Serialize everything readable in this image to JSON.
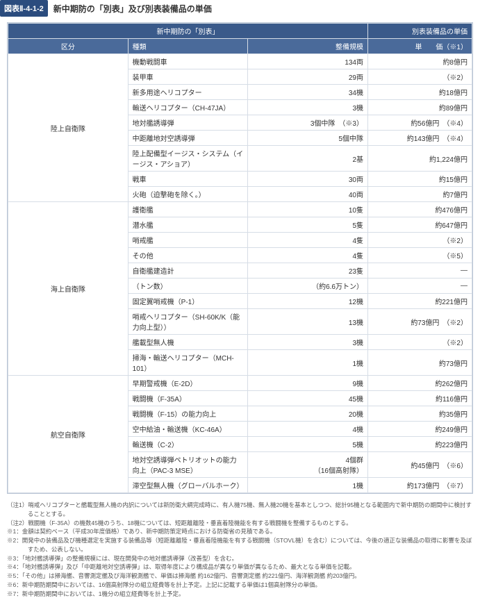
{
  "figure_tag": "図表Ⅱ-4-1-2",
  "figure_title": "新中期防の「別表」及び別表装備品の単価",
  "header": {
    "group_main": "新中期防の「別表」",
    "group_price": "別表装備品の単価",
    "col_category": "区分",
    "col_type": "種類",
    "col_scale": "整備規模",
    "col_price": "単　　価（※1）"
  },
  "sections": [
    {
      "category": "陸上自衛隊",
      "rows": [
        {
          "type": "機動戦闘車",
          "scale": "134両",
          "price": "約8億円"
        },
        {
          "type": "装甲車",
          "scale": "29両",
          "price": "（※2）"
        },
        {
          "type": "新多用途ヘリコプター",
          "scale": "34機",
          "price": "約18億円"
        },
        {
          "type": "輸送ヘリコプター（CH-47JA）",
          "scale": "3機",
          "price": "約89億円"
        },
        {
          "type": "地対艦誘導弾",
          "scale": "3個中隊　（※3）",
          "price": "約56億円　（※4）"
        },
        {
          "type": "中距離地対空誘導弾",
          "scale": "5個中隊",
          "price": "約143億円　（※4）"
        },
        {
          "type": "陸上配備型イージス・システム（イージス・アショア）",
          "scale": "2基",
          "price": "約1,224億円"
        },
        {
          "type": "戦車",
          "scale": "30両",
          "price": "約15億円"
        },
        {
          "type": "火砲（迫撃砲を除く。）",
          "scale": "40両",
          "price": "約7億円"
        }
      ]
    },
    {
      "category": "海上自衛隊",
      "rows": [
        {
          "type": "護衛艦",
          "scale": "10隻",
          "price": "約476億円"
        },
        {
          "type": "潜水艦",
          "scale": "5隻",
          "price": "約647億円"
        },
        {
          "type": "哨戒艦",
          "scale": "4隻",
          "price": "（※2）"
        },
        {
          "type": "その他",
          "scale": "4隻",
          "price": "（※5）"
        },
        {
          "type": "自衛艦建造計",
          "scale": "23隻",
          "price": "―"
        },
        {
          "type": "（トン数）",
          "scale": "（約6.6万トン）",
          "price": "―"
        },
        {
          "type": "固定翼哨戒機（P-1）",
          "scale": "12機",
          "price": "約221億円"
        },
        {
          "type": "哨戒ヘリコプター（SH-60K/K（能力向上型））",
          "scale": "13機",
          "price": "約73億円　（※2）"
        },
        {
          "type": "艦載型無人機",
          "scale": "3機",
          "price": "（※2）"
        },
        {
          "type": "掃海・輸送ヘリコプター（MCH-101）",
          "scale": "1機",
          "price": "約73億円"
        }
      ]
    },
    {
      "category": "航空自衛隊",
      "rows": [
        {
          "type": "早期警戒機（E-2D）",
          "scale": "9機",
          "price": "約262億円"
        },
        {
          "type": "戦闘機（F-35A）",
          "scale": "45機",
          "price": "約116億円"
        },
        {
          "type": "戦闘機（F-15）の能力向上",
          "scale": "20機",
          "price": "約35億円"
        },
        {
          "type": "空中給油・輸送機（KC-46A）",
          "scale": "4機",
          "price": "約249億円"
        },
        {
          "type": "輸送機（C-2）",
          "scale": "5機",
          "price": "約223億円"
        },
        {
          "type": "地対空誘導弾ペトリオットの能力向上（PAC-3 MSE）",
          "scale": "4個群\n（16個高射隊）",
          "price": "約45億円　（※6）"
        },
        {
          "type": "滞空型無人機（グローバルホーク）",
          "scale": "1機",
          "price": "約173億円　（※7）"
        }
      ]
    }
  ],
  "notes": [
    "（注1）哨戒ヘリコプターと艦載型無人機の内訳については新防衛大綱完成時に、有人機75機、無人機20機を基本としつつ、総計95機となる範囲内で新中期防の期間中に検討することとする。",
    "（注2）戦闘機（F-35A）の機数45機のうち、18機については、短距離離陸・垂直着陸機能を有する戦闘機を整備するものとする。",
    "※1：金額は契約ベース（平成30年度価格）であり、新中期防策定時点における防衛省の見積である。",
    "※2：開発中の装備品及び機種選定を実施する装備品等（短距離離陸・垂直着陸機能を有する戦闘機（STOVL機）を含む）については、今後の適正な装備品の取得に影響を及ぼすため、公表しない。",
    "※3：「地対艦誘導弾」の整備規模には、現在開発中の地対艦誘導弾（改善型）を含む。",
    "※4：「地対艦誘導弾」及び「中距離地対空誘導弾」は、取得年度により構成品が異なり単価が異なるため、最大となる単価を記載。",
    "※5：「その他」は掃海艦、音響測定艦及び海洋観測艦で、単価は掃海艦 約162億円、音響測定艦 約221億円、海洋観測艦 約203億円。",
    "※6：新中期防期間中においては、16個高射隊分の組立経費等を計上予定。上記に記載する単価は1個高射隊分の単価。",
    "※7：新中期防期間中においては、1機分の組立経費等を計上予定。"
  ]
}
